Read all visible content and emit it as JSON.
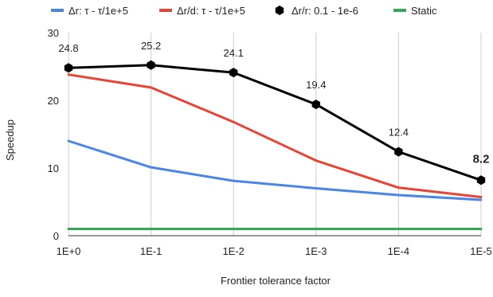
{
  "chart_data": {
    "type": "line",
    "title": "",
    "xlabel": "Frontier tolerance factor",
    "ylabel": "Speedup",
    "categories": [
      "1E+0",
      "1E-1",
      "1E-2",
      "1E-3",
      "1E-4",
      "1E-5"
    ],
    "ylim": [
      0,
      30
    ],
    "yticks": [
      0,
      10,
      20,
      30
    ],
    "grid": "vertical",
    "legend_position": "top",
    "series": [
      {
        "name": "Δr: τ - τ/1e+5",
        "color": "#4a86e8",
        "values": [
          14.0,
          10.1,
          8.1,
          7.0,
          6.0,
          5.3
        ],
        "markers": false
      },
      {
        "name": "Δr/d: τ - τ/1e+5",
        "color": "#e84335",
        "values": [
          23.8,
          21.9,
          16.8,
          11.1,
          7.1,
          5.7
        ],
        "markers": false
      },
      {
        "name": "Δr/r: 0.1 - 1e-6",
        "color": "#000000",
        "values": [
          24.8,
          25.2,
          24.1,
          19.4,
          12.4,
          8.2
        ],
        "markers": true
      },
      {
        "name": "Static",
        "color": "#34a853",
        "values": [
          1.0,
          1.0,
          1.0,
          1.0,
          1.0,
          1.0
        ],
        "markers": false
      }
    ],
    "data_labels": {
      "series": "Δr/r: 0.1 - 1e-6",
      "texts": [
        "24.8",
        "25.2",
        "24.1",
        "19.4",
        "12.4",
        "8.2"
      ]
    }
  }
}
